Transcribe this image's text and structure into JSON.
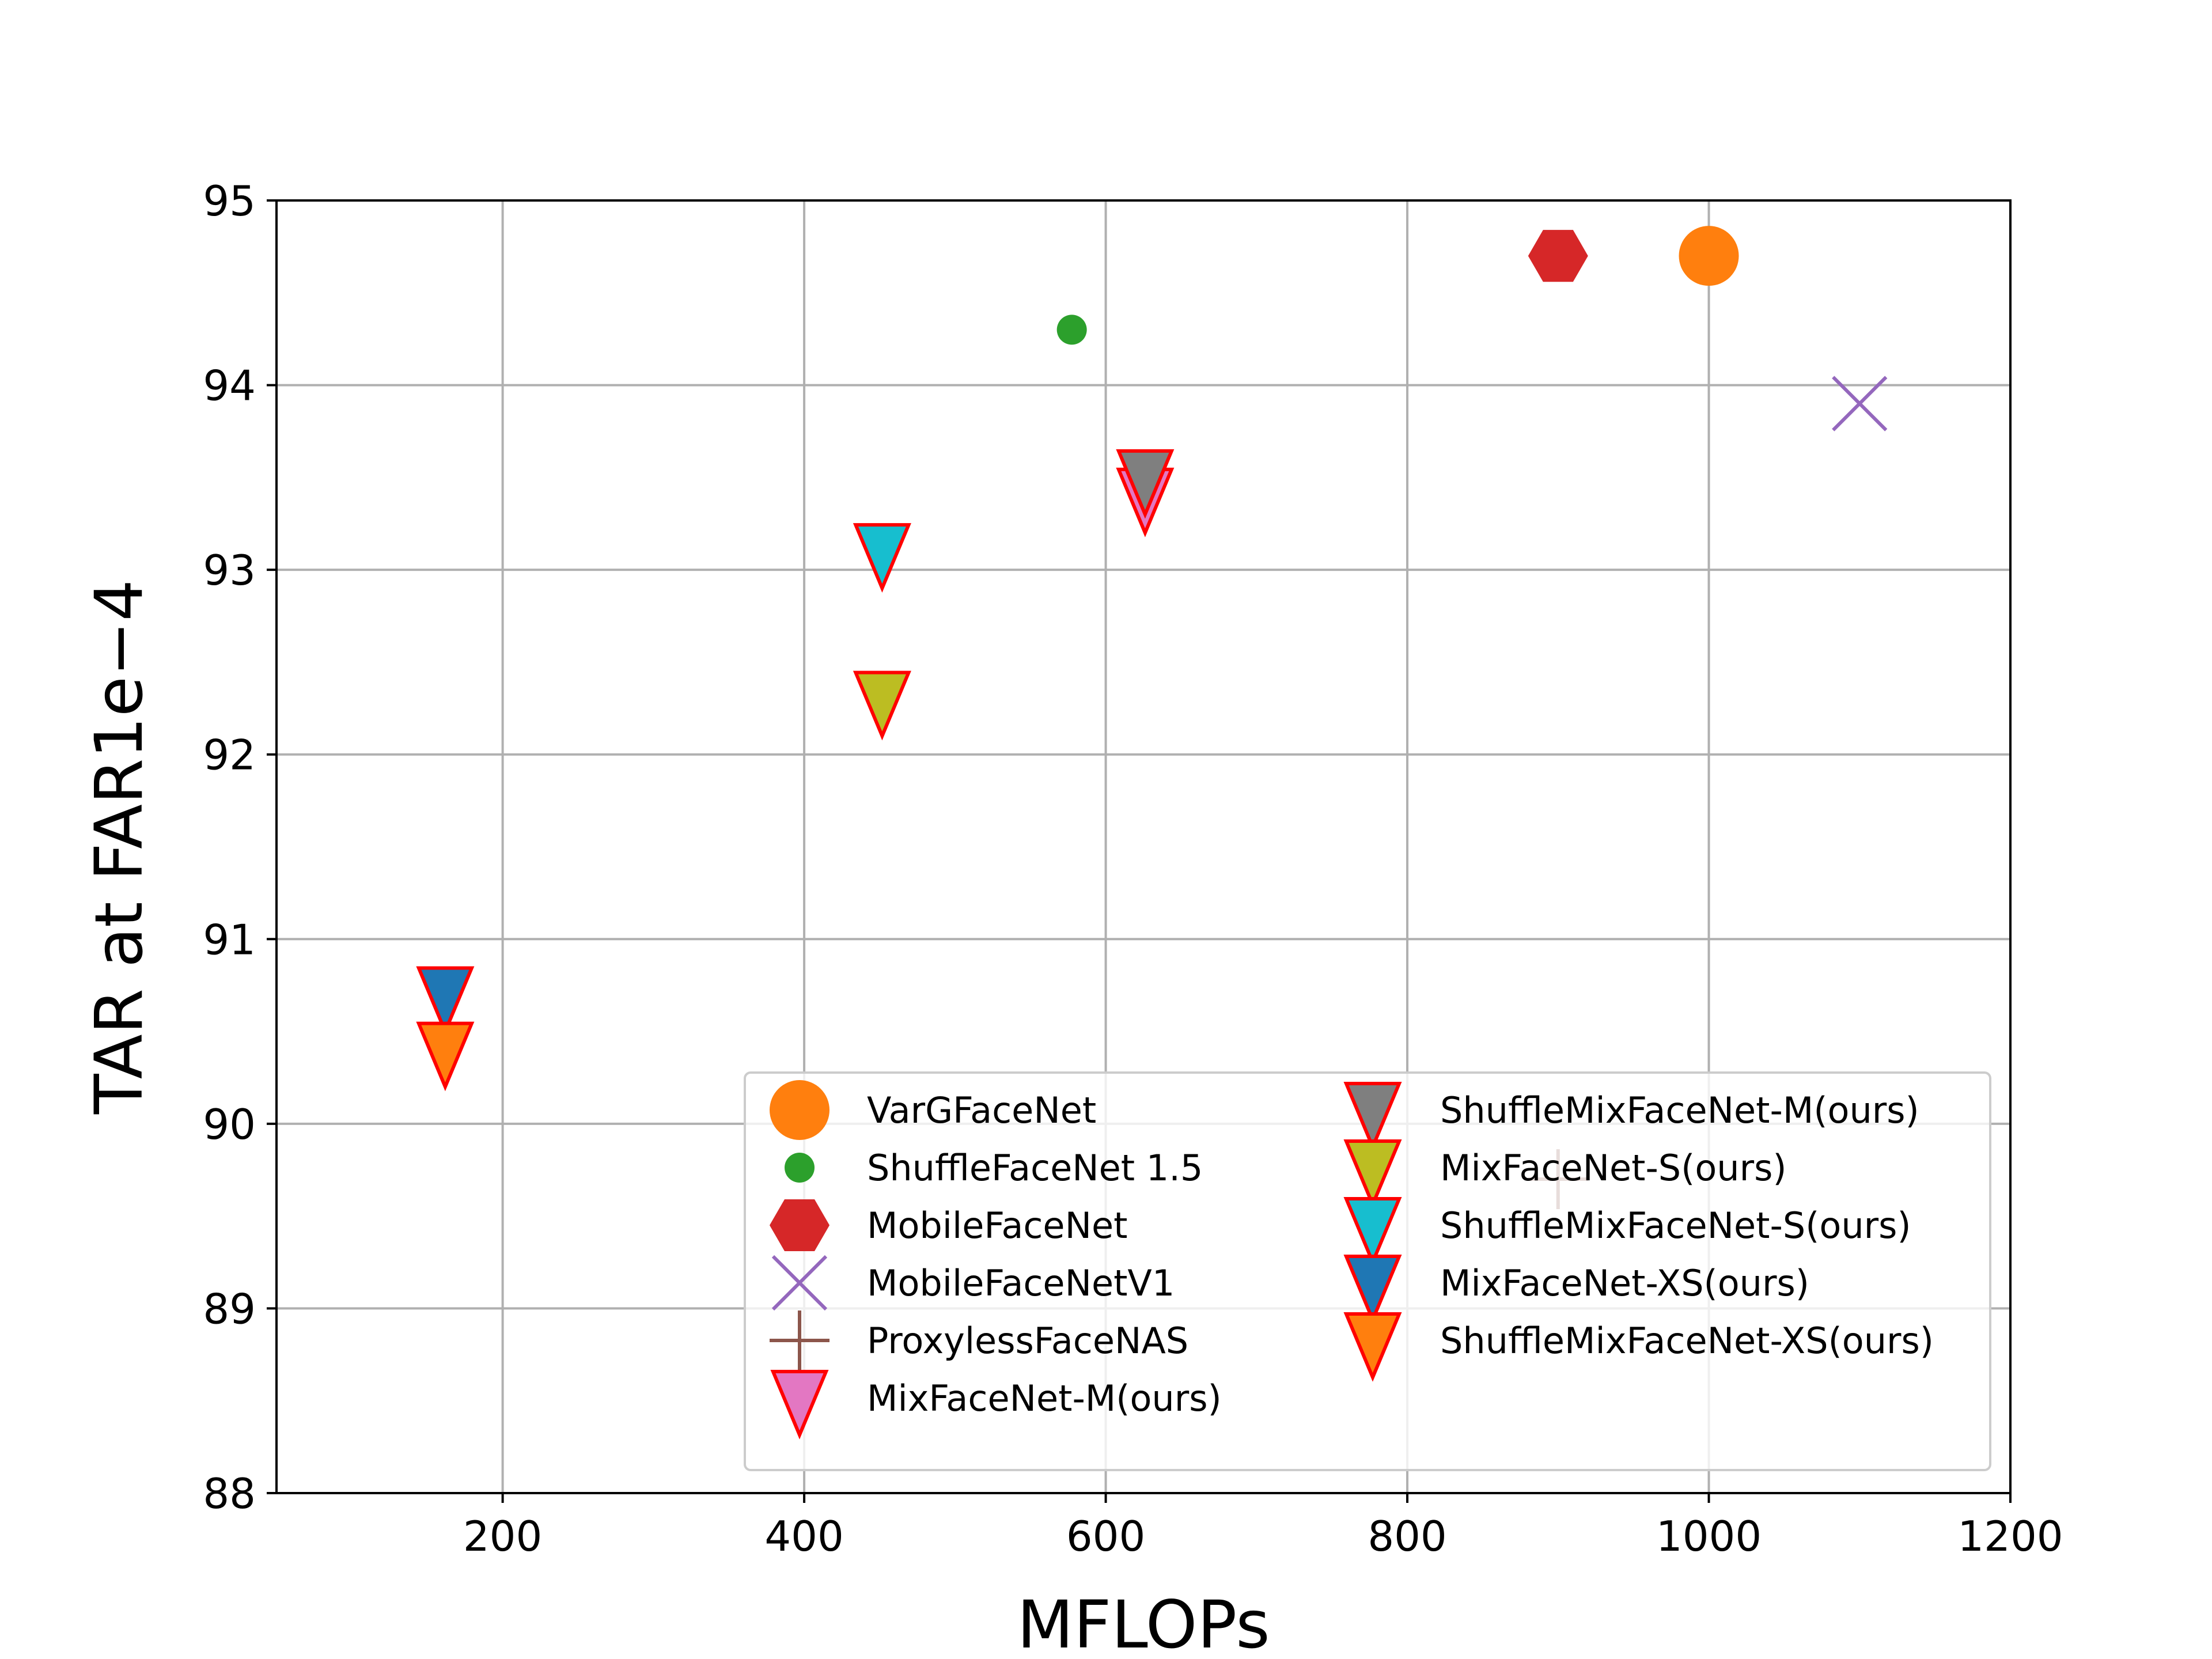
{
  "chart_data": {
    "type": "scatter",
    "title": "",
    "xlabel": "MFLOPs",
    "ylabel": "TAR at FAR1e−4",
    "xlim": [
      50,
      1200
    ],
    "ylim": [
      88,
      95
    ],
    "xticks": [
      "200",
      "400",
      "600",
      "800",
      "1000",
      "1200"
    ],
    "yticks": [
      "88",
      "89",
      "90",
      "91",
      "92",
      "93",
      "94",
      "95"
    ],
    "grid": true,
    "legend_position": "lower-right",
    "series": [
      {
        "name": "VarGFaceNet",
        "marker": "circle",
        "color": "#ff7f0e",
        "edge": "",
        "points": [
          [
            1000,
            94.7
          ]
        ]
      },
      {
        "name": "ShuffleFaceNet 1.5",
        "marker": "small-circle",
        "color": "#2ca02c",
        "edge": "",
        "points": [
          [
            577.5,
            94.3
          ]
        ]
      },
      {
        "name": "MobileFaceNet",
        "marker": "hexagon",
        "color": "#d62728",
        "edge": "",
        "points": [
          [
            900,
            94.7
          ]
        ]
      },
      {
        "name": "MobileFaceNetV1",
        "marker": "x",
        "color": "#9467bd",
        "edge": "",
        "points": [
          [
            1100,
            93.9
          ]
        ]
      },
      {
        "name": "ProxylessFaceNAS",
        "marker": "plus",
        "color": "#8c564b",
        "edge": "",
        "points": [
          [
            900,
            89.7
          ]
        ]
      },
      {
        "name": "MixFaceNet-M(ours)",
        "marker": "triangle-down",
        "color": "#e377c2",
        "edge": "#ff0000",
        "points": [
          [
            626.1,
            93.4
          ]
        ]
      },
      {
        "name": "ShuffleMixFaceNet-M(ours)",
        "marker": "triangle-down",
        "color": "#7f7f7f",
        "edge": "#ff0000",
        "points": [
          [
            626.1,
            93.5
          ]
        ]
      },
      {
        "name": "MixFaceNet-S(ours)",
        "marker": "triangle-down",
        "color": "#bcbd22",
        "edge": "#ff0000",
        "points": [
          [
            451.7,
            92.3
          ]
        ]
      },
      {
        "name": "ShuffleMixFaceNet-S(ours)",
        "marker": "triangle-down",
        "color": "#17becf",
        "edge": "#ff0000",
        "points": [
          [
            451.7,
            93.1
          ]
        ]
      },
      {
        "name": "MixFaceNet-XS(ours)",
        "marker": "triangle-down",
        "color": "#1f77b4",
        "edge": "#ff0000",
        "points": [
          [
            161.9,
            90.7
          ]
        ]
      },
      {
        "name": "ShuffleMixFaceNet-XS(ours)",
        "marker": "triangle-down",
        "color": "#ff7f0e",
        "edge": "#ff0000",
        "points": [
          [
            161.9,
            90.4
          ]
        ]
      }
    ]
  }
}
